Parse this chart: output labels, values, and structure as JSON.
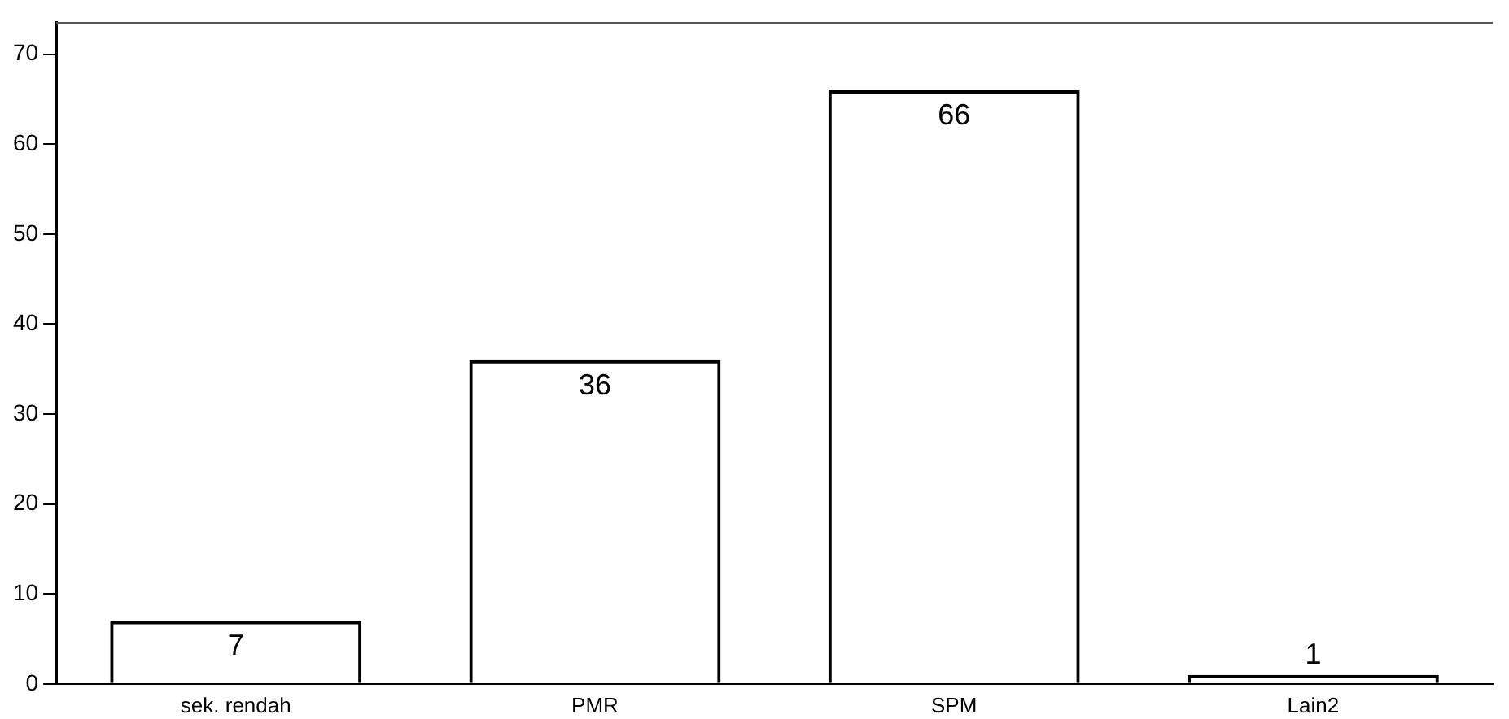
{
  "chart_data": {
    "type": "bar",
    "categories": [
      "sek. rendah",
      "PMR",
      "SPM",
      "Lain2"
    ],
    "values": [
      7,
      36,
      66,
      1
    ],
    "color": "#000000",
    "ylim": [
      0,
      73.5
    ],
    "yticks": [
      0,
      10,
      20,
      30,
      40,
      50,
      60,
      70
    ],
    "grid": false,
    "legend": false,
    "data_labels": true
  }
}
